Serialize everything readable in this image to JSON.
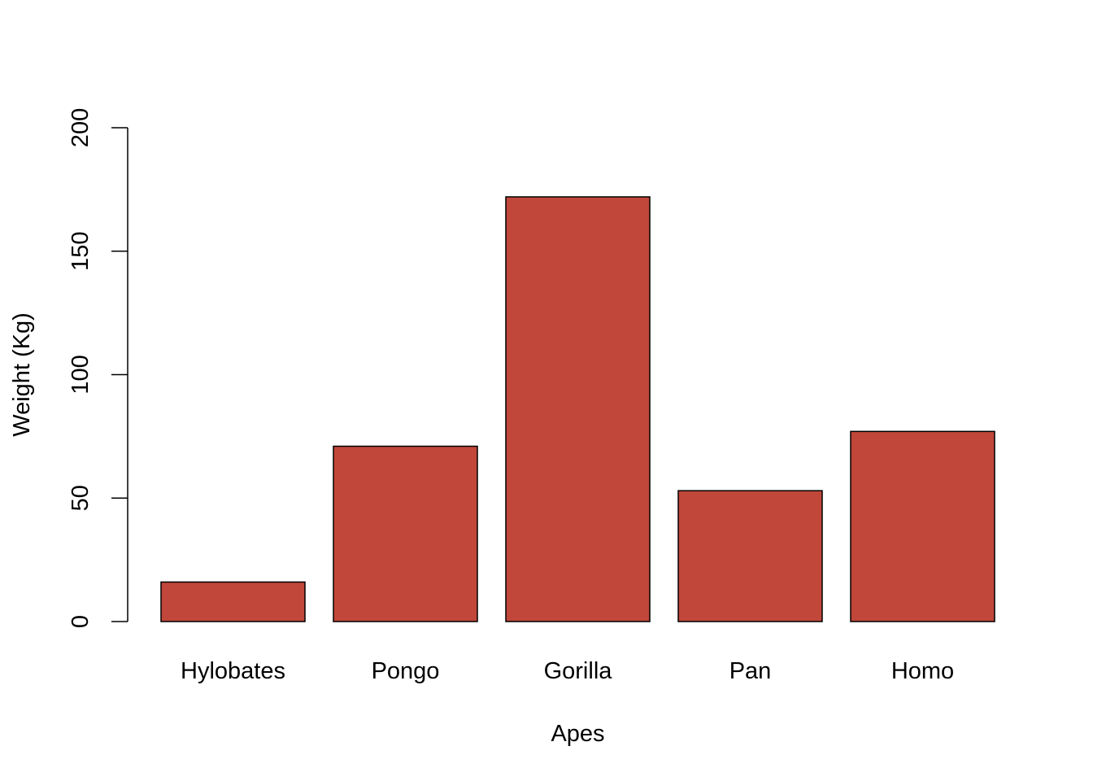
{
  "chart_data": {
    "type": "bar",
    "title": "",
    "xlabel": "Apes",
    "ylabel": "Weight (Kg)",
    "categories": [
      "Hylobates",
      "Pongo",
      "Gorilla",
      "Pan",
      "Homo"
    ],
    "values": [
      16,
      71,
      172,
      53,
      77
    ],
    "ylim": [
      0,
      200
    ],
    "yticks": [
      0,
      50,
      100,
      150,
      200
    ],
    "bar_color": "#C0473A",
    "grid": false,
    "legend": "none"
  }
}
